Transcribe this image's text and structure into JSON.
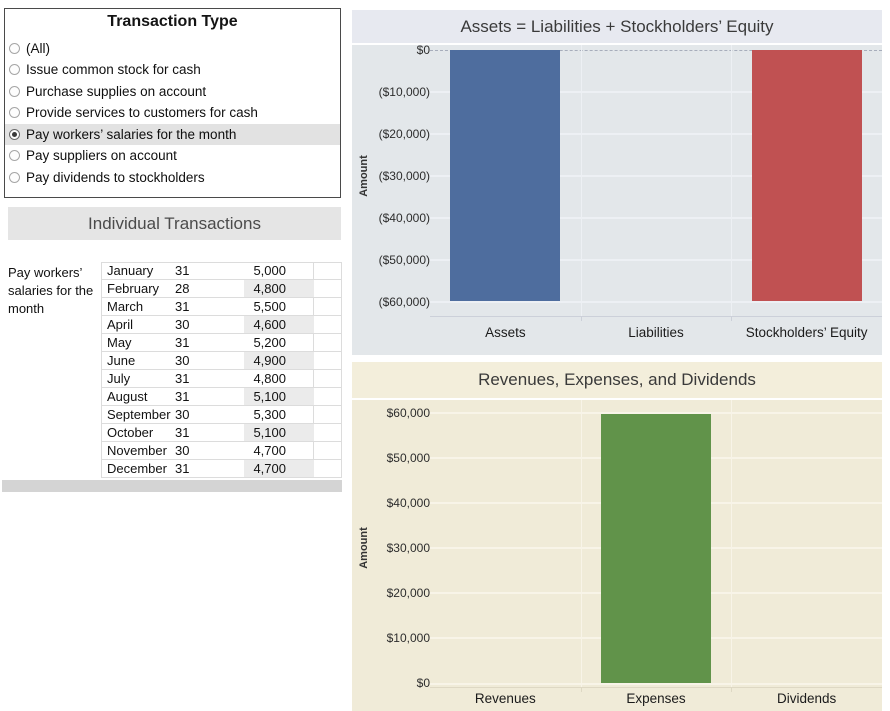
{
  "filter_panel": {
    "title": "Transaction Type",
    "options": [
      {
        "label": "(All)",
        "selected": false
      },
      {
        "label": "Issue common stock for cash",
        "selected": false
      },
      {
        "label": "Purchase supplies on account",
        "selected": false
      },
      {
        "label": "Provide services to customers for cash",
        "selected": false
      },
      {
        "label": "Pay workers’ salaries for the month",
        "selected": true
      },
      {
        "label": "Pay suppliers on account",
        "selected": false
      },
      {
        "label": "Pay dividends to stockholders",
        "selected": false
      }
    ]
  },
  "transactions_panel": {
    "title": "Individual Transactions",
    "row_header": "Pay workers’ salaries for the month",
    "columns": [
      "month",
      "days",
      "amount"
    ],
    "rows": [
      {
        "month": "January",
        "days": "31",
        "amount": "5,000"
      },
      {
        "month": "February",
        "days": "28",
        "amount": "4,800"
      },
      {
        "month": "March",
        "days": "31",
        "amount": "5,500"
      },
      {
        "month": "April",
        "days": "30",
        "amount": "4,600"
      },
      {
        "month": "May",
        "days": "31",
        "amount": "5,200"
      },
      {
        "month": "June",
        "days": "30",
        "amount": "4,900"
      },
      {
        "month": "July",
        "days": "31",
        "amount": "4,800"
      },
      {
        "month": "August",
        "days": "31",
        "amount": "5,100"
      },
      {
        "month": "September",
        "days": "30",
        "amount": "5,300"
      },
      {
        "month": "October",
        "days": "31",
        "amount": "5,100"
      },
      {
        "month": "November",
        "days": "30",
        "amount": "4,700"
      },
      {
        "month": "December",
        "days": "31",
        "amount": "4,700"
      }
    ]
  },
  "chart_data": [
    {
      "type": "bar",
      "title": "Assets = Liabilities + Stockholders’ Equity",
      "categories": [
        "Assets",
        "Liabilities",
        "Stockholders’ Equity"
      ],
      "values": [
        -59700,
        0,
        -59700
      ],
      "bar_colors": [
        "#4e6d9e",
        null,
        "#c05152"
      ],
      "ylabel": "Amount",
      "yticks": [
        "$0",
        "($10,000)",
        "($20,000)",
        "($30,000)",
        "($40,000)",
        "($50,000)",
        "($60,000)"
      ],
      "ylim": [
        -60000,
        0
      ],
      "grid": true,
      "legend": "none",
      "title_bg": "#e7e9f0",
      "plot_bg": "#e3e7ea"
    },
    {
      "type": "bar",
      "title": "Revenues, Expenses, and Dividends",
      "categories": [
        "Revenues",
        "Expenses",
        "Dividends"
      ],
      "values": [
        0,
        59700,
        0
      ],
      "bar_colors": [
        null,
        "#61934a",
        null
      ],
      "ylabel": "Amount",
      "yticks": [
        "$0",
        "$10,000",
        "$20,000",
        "$30,000",
        "$40,000",
        "$50,000",
        "$60,000"
      ],
      "ylim": [
        0,
        60000
      ],
      "grid": true,
      "legend": "none",
      "title_bg": "#f3eedb",
      "plot_bg": "#f0ebd8"
    }
  ]
}
